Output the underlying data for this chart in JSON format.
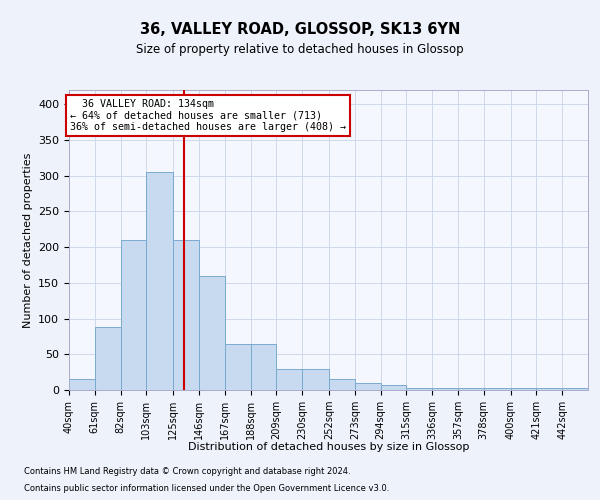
{
  "title": "36, VALLEY ROAD, GLOSSOP, SK13 6YN",
  "subtitle": "Size of property relative to detached houses in Glossop",
  "xlabel": "Distribution of detached houses by size in Glossop",
  "ylabel": "Number of detached properties",
  "footnote1": "Contains HM Land Registry data © Crown copyright and database right 2024.",
  "footnote2": "Contains public sector information licensed under the Open Government Licence v3.0.",
  "bar_color": "#c8daf0",
  "bar_edge_color": "#7aaad0",
  "grid_color": "#c8d4e8",
  "vline_x": 134,
  "vline_color": "#cc0000",
  "annotation_text1": "36 VALLEY ROAD: 134sqm",
  "annotation_text2": "← 64% of detached houses are smaller (713)",
  "annotation_text3": "36% of semi-detached houses are larger (408) →",
  "annotation_box_color": "#cc0000",
  "bin_edges": [
    40,
    61,
    82,
    103,
    125,
    146,
    167,
    188,
    209,
    230,
    252,
    273,
    294,
    315,
    336,
    357,
    378,
    400,
    421,
    442,
    463
  ],
  "bar_heights": [
    15,
    88,
    210,
    305,
    210,
    160,
    65,
    65,
    30,
    30,
    15,
    10,
    7,
    3,
    3,
    3,
    3,
    3,
    3,
    3
  ],
  "ylim": [
    0,
    420
  ],
  "yticks": [
    0,
    50,
    100,
    150,
    200,
    250,
    300,
    350,
    400
  ],
  "bg_color": "#eef2fb",
  "axes_bg_color": "#f4f7fd"
}
